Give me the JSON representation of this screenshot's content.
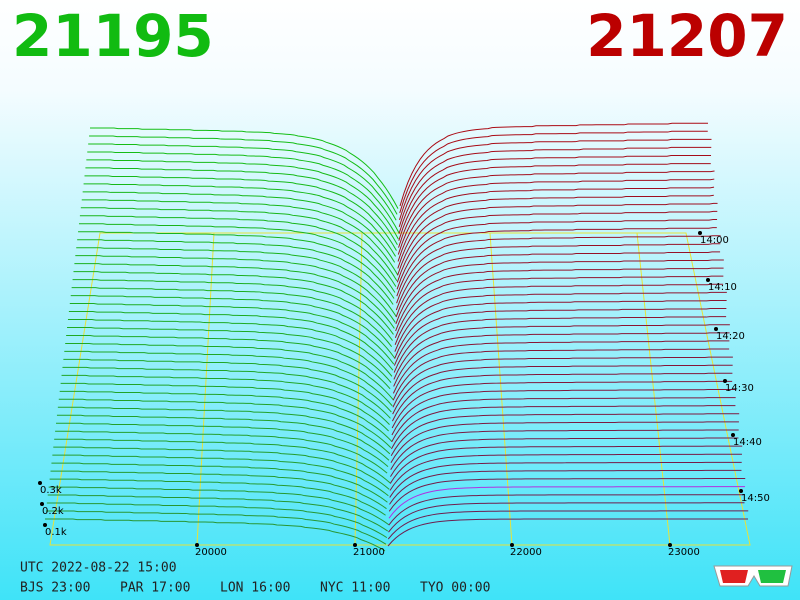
{
  "header": {
    "bid": "21195",
    "ask": "21207"
  },
  "price_axis": {
    "labels": [
      "20000",
      "21000",
      "22000",
      "23000"
    ]
  },
  "time_axis": {
    "labels": [
      "14:00",
      "14:10",
      "14:20",
      "14:30",
      "14:40",
      "14:50"
    ]
  },
  "depth_axis": {
    "labels": [
      "0.3k",
      "0.2k",
      "0.1k"
    ]
  },
  "footer": {
    "utc": "UTC 2022-08-22 15:00",
    "zones": [
      "BJS 23:00",
      "PAR 17:00",
      "LON 16:00",
      "NYC 11:00",
      "TYO 00:00"
    ]
  }
}
